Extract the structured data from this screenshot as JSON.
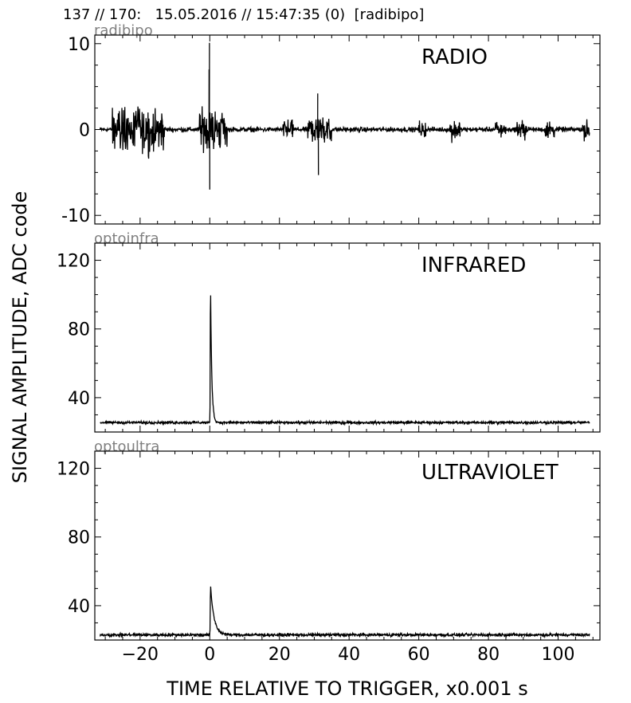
{
  "header": {
    "text": "137 // 170:   15.05.2016 // 15:47:35 (0)  [radibipo]"
  },
  "chart_data": [
    {
      "type": "line",
      "channel": "radibipo",
      "panel_title": "RADIO",
      "xlim": [
        -33,
        112
      ],
      "ylim": [
        -11,
        11
      ],
      "yticks": [
        -10,
        0,
        10
      ],
      "ytick_labels": [
        "-10",
        "0",
        "10"
      ],
      "baseline": 0,
      "noise": 0.3,
      "noise_bursts": [
        {
          "x0": -28,
          "x1": -13,
          "amp": 1.2
        },
        {
          "x0": -3,
          "x1": 5,
          "amp": 1.1
        },
        {
          "x0": 28,
          "x1": 35,
          "amp": 0.8
        },
        {
          "x0": 21,
          "x1": 24,
          "amp": 0.5
        },
        {
          "x0": 60,
          "x1": 62,
          "amp": 0.5
        },
        {
          "x0": 69,
          "x1": 72,
          "amp": 0.6
        },
        {
          "x0": 82,
          "x1": 85,
          "amp": 0.4
        },
        {
          "x0": 88,
          "x1": 91,
          "amp": 0.6
        },
        {
          "x0": 96,
          "x1": 99,
          "amp": 0.5
        },
        {
          "x0": 107,
          "x1": 110,
          "amp": 0.5
        }
      ],
      "peaks": [
        {
          "x": -0.1,
          "y": 10.1
        },
        {
          "x": 0.0,
          "y": -7.0
        },
        {
          "x": -0.2,
          "y": 7.0
        },
        {
          "x": 31.0,
          "y": 4.2
        },
        {
          "x": 31.2,
          "y": -5.3
        }
      ]
    },
    {
      "type": "line",
      "channel": "optoinfra",
      "panel_title": "INFRARED",
      "xlim": [
        -33,
        112
      ],
      "ylim": [
        20,
        130
      ],
      "yticks": [
        40,
        80,
        120
      ],
      "ytick_labels": [
        "40",
        "80",
        "120"
      ],
      "baseline": 25.5,
      "noise": 0.8,
      "pulse": {
        "x": 0.2,
        "peak": 111.5,
        "decay": 0.35
      }
    },
    {
      "type": "line",
      "channel": "optoultra",
      "panel_title": "ULTRAVIOLET",
      "xlim": [
        -33,
        112
      ],
      "ylim": [
        20,
        130
      ],
      "yticks": [
        40,
        80,
        120
      ],
      "ytick_labels": [
        "40",
        "80",
        "120"
      ],
      "baseline": 23,
      "noise": 0.9,
      "pulse": {
        "x": 0.2,
        "peak": 52,
        "decay": 1.0
      }
    }
  ],
  "axes": {
    "xticks": [
      -20,
      0,
      20,
      40,
      60,
      80,
      100
    ],
    "xtick_labels": [
      "−20",
      "0",
      "20",
      "40",
      "60",
      "80",
      "100"
    ],
    "xlabel": "TIME RELATIVE TO TRIGGER,   x0.001 s",
    "ylabel": "SIGNAL AMPLITUDE,  ADC code"
  }
}
